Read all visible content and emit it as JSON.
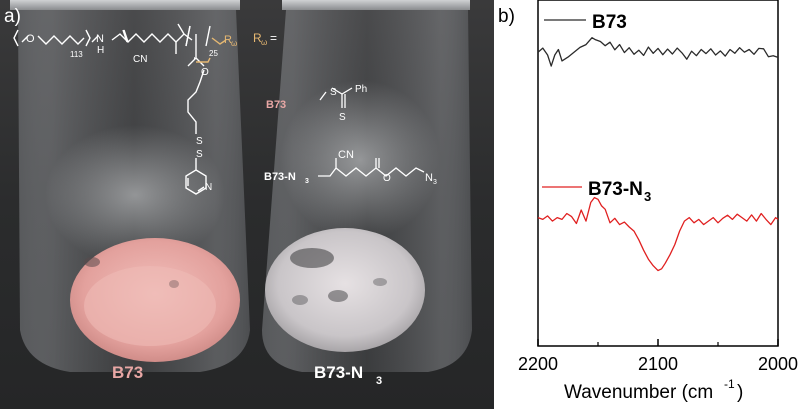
{
  "photo_panel": {
    "panel_label": "a)",
    "vial_left_caption": "B73",
    "vial_right_caption": "B73-N",
    "vial_right_caption_sub": "3",
    "structure": {
      "peg_repeat": "113",
      "nh": "N",
      "h": "H",
      "o_left": "O",
      "cn_backbone": "CN",
      "block_repeat": "25",
      "r_omega_chain": "R",
      "omega": "ω",
      "ester_o": "O",
      "s1": "S",
      "s2": "S",
      "pyridine_n": "N"
    },
    "r_def": {
      "lhs": "R",
      "lhs_sub": "ω",
      "eq": "=",
      "b73_label": "B73",
      "s_thio": "S",
      "ph": "Ph",
      "s_double": "S",
      "b73n3_label": "B73-N",
      "b73n3_label_sub": "3",
      "cn": "CN",
      "o": "O",
      "n3": "N",
      "n3_sub": "3"
    },
    "colors": {
      "backdrop": "#2f3031",
      "b73_powder": "#e8a9a6",
      "b73_label": "#e8a7a5",
      "b73n3_label": "#ffffff",
      "structure_white": "#ffffff",
      "structure_highlight": "#e6b872"
    }
  },
  "plot_panel": {
    "panel_label": "b)",
    "legend_b73": "B73",
    "legend_b73n3": "B73-N",
    "legend_b73n3_sub": "3",
    "xaxis_title": "Wavenumber (cm",
    "xaxis_title_sup": "-1",
    "xaxis_title_close": ")",
    "ticks": [
      "2200",
      "2100",
      "2000"
    ],
    "colors": {
      "b73": "#2b2b2b",
      "b73n3": "#e02020"
    }
  },
  "chart_data": {
    "type": "line",
    "xlabel": "Wavenumber (cm-1)",
    "x_reversed": true,
    "xlim": [
      2200,
      2000
    ],
    "ylim": [
      0,
      1
    ],
    "y_axis_labels": false,
    "series": [
      {
        "name": "B73",
        "x": [
          2200,
          2196,
          2192,
          2189,
          2186,
          2183,
          2180,
          2175,
          2170,
          2165,
          2160,
          2155,
          2152,
          2148,
          2144,
          2140,
          2136,
          2132,
          2128,
          2124,
          2120,
          2116,
          2112,
          2108,
          2104,
          2100,
          2096,
          2092,
          2088,
          2084,
          2080,
          2076,
          2072,
          2068,
          2064,
          2060,
          2056,
          2052,
          2048,
          2044,
          2040,
          2036,
          2032,
          2028,
          2024,
          2020,
          2016,
          2012,
          2008,
          2004,
          2000
        ],
        "y": [
          0.849,
          0.861,
          0.841,
          0.809,
          0.841,
          0.857,
          0.824,
          0.835,
          0.849,
          0.863,
          0.871,
          0.891,
          0.885,
          0.88,
          0.868,
          0.878,
          0.856,
          0.871,
          0.848,
          0.862,
          0.843,
          0.855,
          0.84,
          0.864,
          0.846,
          0.86,
          0.842,
          0.858,
          0.844,
          0.861,
          0.847,
          0.829,
          0.852,
          0.839,
          0.857,
          0.845,
          0.859,
          0.841,
          0.853,
          0.838,
          0.857,
          0.846,
          0.862,
          0.849,
          0.857,
          0.843,
          0.86,
          0.859,
          0.836,
          0.839,
          0.834
        ]
      },
      {
        "name": "B73-N3",
        "x": [
          2200,
          2196,
          2192,
          2188,
          2184,
          2180,
          2176,
          2172,
          2168,
          2164,
          2160,
          2156,
          2153,
          2150,
          2147,
          2144,
          2140,
          2136,
          2132,
          2128,
          2124,
          2120,
          2116,
          2112,
          2108,
          2104,
          2100,
          2097,
          2094,
          2090,
          2086,
          2082,
          2078,
          2074,
          2070,
          2066,
          2062,
          2058,
          2054,
          2050,
          2046,
          2042,
          2038,
          2034,
          2030,
          2026,
          2022,
          2018,
          2014,
          2010,
          2006,
          2002,
          2000
        ],
        "y": [
          0.371,
          0.366,
          0.376,
          0.361,
          0.371,
          0.366,
          0.383,
          0.374,
          0.354,
          0.393,
          0.361,
          0.415,
          0.429,
          0.424,
          0.405,
          0.395,
          0.356,
          0.369,
          0.351,
          0.358,
          0.344,
          0.332,
          0.307,
          0.277,
          0.251,
          0.232,
          0.218,
          0.223,
          0.239,
          0.264,
          0.293,
          0.332,
          0.361,
          0.371,
          0.356,
          0.366,
          0.351,
          0.361,
          0.371,
          0.356,
          0.369,
          0.378,
          0.366,
          0.381,
          0.371,
          0.361,
          0.379,
          0.361,
          0.383,
          0.366,
          0.351,
          0.371,
          0.366
        ]
      }
    ]
  }
}
